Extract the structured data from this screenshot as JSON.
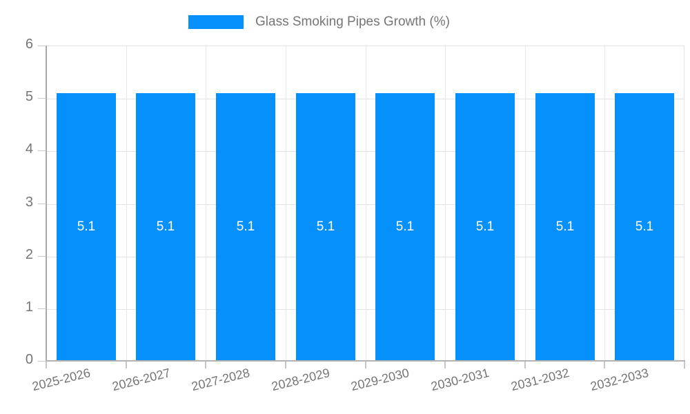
{
  "chart_data": {
    "type": "bar",
    "title": "",
    "legend": {
      "label": "Glass Smoking Pipes Growth (%)",
      "position": "top-center"
    },
    "categories": [
      "2025-2026",
      "2026-2027",
      "2027-2028",
      "2028-2029",
      "2029-2030",
      "2030-2031",
      "2031-2032",
      "2032-2033"
    ],
    "series": [
      {
        "name": "Glass Smoking Pipes Growth (%)",
        "values": [
          5.1,
          5.1,
          5.1,
          5.1,
          5.1,
          5.1,
          5.1,
          5.1
        ]
      }
    ],
    "bar_value_labels": [
      "5.1",
      "5.1",
      "5.1",
      "5.1",
      "5.1",
      "5.1",
      "5.1",
      "5.1"
    ],
    "xlabel": "",
    "ylabel": "",
    "ylim": [
      0,
      6
    ],
    "yticks": [
      0,
      1,
      2,
      3,
      4,
      5,
      6
    ],
    "grid": true,
    "colors": {
      "bar": "#0590fb",
      "bar_value_label": "#ffffff",
      "axis_text": "#757575",
      "legend_text": "#757575",
      "gridline": "#e3e3e3",
      "axis_line": "#aaaaaa",
      "background": "#ffffff"
    }
  }
}
